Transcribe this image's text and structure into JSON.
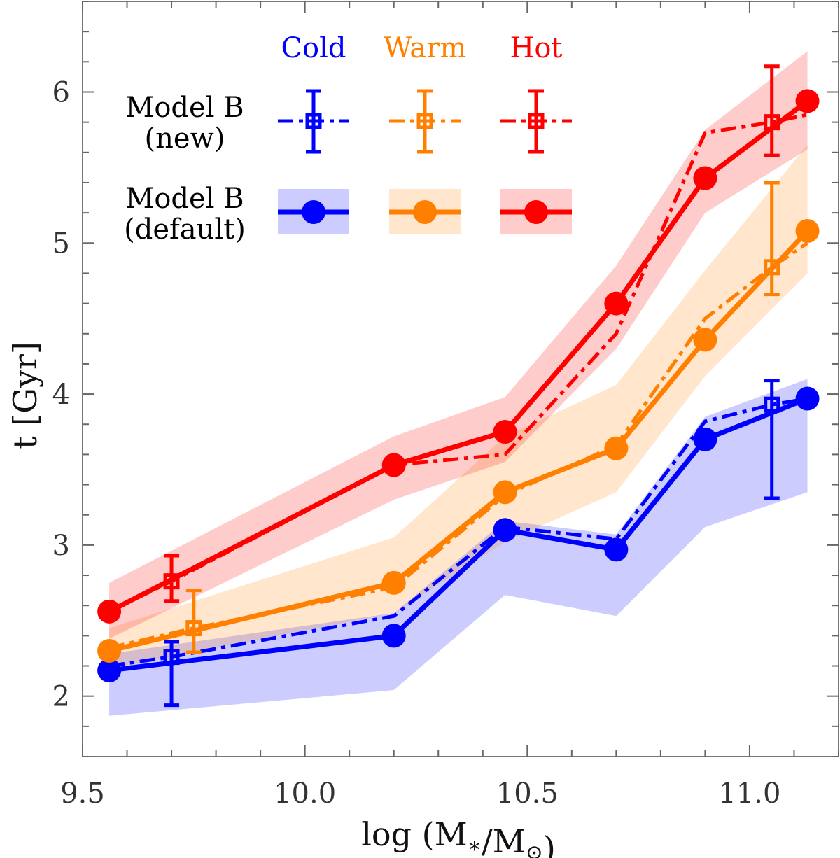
{
  "chart_data": {
    "type": "line",
    "title": "",
    "xlabel": "log (M∗/M⊙)",
    "ylabel": "t [Gyr]",
    "xlim": [
      9.5,
      11.2
    ],
    "ylim": [
      1.6,
      6.6
    ],
    "xticks": [
      9.5,
      10.0,
      10.5,
      11.0
    ],
    "xtick_labels": [
      "9.5",
      "10.0",
      "10.5",
      "11.0"
    ],
    "xminor_step": 0.1,
    "yticks": [
      2,
      3,
      4,
      5,
      6
    ],
    "ytick_labels": [
      "2",
      "3",
      "4",
      "5",
      "6"
    ],
    "yminor_step": 0.2,
    "grid": false,
    "legend": {
      "placement": "top-left",
      "columns": [
        "Cold",
        "Warm",
        "Hot"
      ],
      "rows": [
        {
          "label_line1": "Model B",
          "label_line2": "(new)",
          "style": "dash-dot with square markers and error bars"
        },
        {
          "label_line1": "Model B",
          "label_line2": "(default)",
          "style": "solid with filled circles and shaded band"
        }
      ]
    },
    "colors": {
      "Cold": {
        "line": "#0000ff",
        "band": "#ccccff"
      },
      "Warm": {
        "line": "#ff8000",
        "band": "#ffe6cc"
      },
      "Hot": {
        "line": "#ff0000",
        "band": "#ffcccc"
      }
    },
    "series": [
      {
        "name": "Cold",
        "model": "Model B (default)",
        "x": [
          9.56,
          10.2,
          10.45,
          10.7,
          10.9,
          11.13
        ],
        "y": [
          2.17,
          2.4,
          3.1,
          2.97,
          3.7,
          3.97
        ],
        "band_upper": [
          2.28,
          2.55,
          3.16,
          3.07,
          3.85,
          4.1
        ],
        "band_lower": [
          1.87,
          2.04,
          2.67,
          2.53,
          3.12,
          3.35
        ]
      },
      {
        "name": "Warm",
        "model": "Model B (default)",
        "x": [
          9.56,
          10.2,
          10.45,
          10.7,
          10.9,
          11.13
        ],
        "y": [
          2.3,
          2.75,
          3.35,
          3.64,
          4.36,
          5.08
        ],
        "band_upper": [
          2.45,
          3.05,
          3.72,
          4.06,
          4.82,
          5.65
        ],
        "band_lower": [
          2.18,
          2.55,
          3.02,
          3.35,
          4.12,
          4.8
        ]
      },
      {
        "name": "Hot",
        "model": "Model B (default)",
        "x": [
          9.56,
          10.2,
          10.45,
          10.7,
          10.9,
          11.13
        ],
        "y": [
          2.56,
          3.53,
          3.75,
          4.6,
          5.43,
          5.94
        ],
        "band_upper": [
          2.75,
          3.72,
          3.98,
          4.85,
          5.75,
          6.27
        ],
        "band_lower": [
          2.38,
          3.3,
          3.55,
          4.3,
          5.2,
          5.62
        ]
      },
      {
        "name": "Cold",
        "model": "Model B (new)",
        "x": [
          9.56,
          9.7,
          10.2,
          10.45,
          10.7,
          10.9,
          11.05,
          11.13
        ],
        "y": [
          2.2,
          2.26,
          2.53,
          3.12,
          3.04,
          3.82,
          3.93,
          3.97
        ],
        "errorbars": [
          {
            "x": 9.7,
            "y": 2.26,
            "low": 1.94,
            "high": 2.36
          },
          {
            "x": 11.05,
            "y": 3.93,
            "low": 3.31,
            "high": 4.09
          }
        ]
      },
      {
        "name": "Warm",
        "model": "Model B (new)",
        "x": [
          9.56,
          9.75,
          10.2,
          10.45,
          10.7,
          10.9,
          11.05,
          11.13
        ],
        "y": [
          2.32,
          2.45,
          2.72,
          3.33,
          3.66,
          4.5,
          4.84,
          5.0
        ],
        "errorbars": [
          {
            "x": 9.75,
            "y": 2.45,
            "low": 2.29,
            "high": 2.7
          },
          {
            "x": 11.05,
            "y": 4.84,
            "low": 4.66,
            "high": 5.4
          }
        ]
      },
      {
        "name": "Hot",
        "model": "Model B (new)",
        "x": [
          9.56,
          9.7,
          10.2,
          10.45,
          10.7,
          10.9,
          11.05,
          11.13
        ],
        "y": [
          2.56,
          2.76,
          3.53,
          3.6,
          4.4,
          5.73,
          5.8,
          5.85
        ],
        "errorbars": [
          {
            "x": 9.7,
            "y": 2.76,
            "low": 2.63,
            "high": 2.93
          },
          {
            "x": 11.05,
            "y": 5.8,
            "low": 5.58,
            "high": 6.17
          }
        ]
      }
    ]
  }
}
